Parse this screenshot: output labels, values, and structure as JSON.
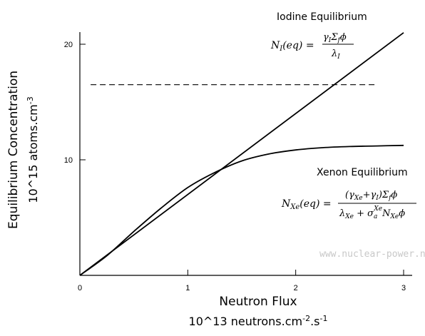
{
  "chart_data": {
    "type": "line",
    "xlabel": "Neutron Flux",
    "xlabel_units": "10^13 neutrons.cm",
    "xlabel_units_exp1": "-2",
    "xlabel_units_mid": ".s",
    "xlabel_units_exp2": "-1",
    "ylabel": "Equilibrium Concentration",
    "ylabel_units": "10^15 atoms.cm",
    "ylabel_units_exp": "-3",
    "xlim": [
      0,
      3
    ],
    "ylim": [
      0,
      22
    ],
    "x_ticks": [
      0,
      1,
      2,
      3
    ],
    "y_ticks": [
      10,
      20
    ],
    "x_tick_labels": [
      "0",
      "1",
      "2",
      "3"
    ],
    "y_tick_labels": [
      "10",
      "20"
    ],
    "grid": false,
    "series": [
      {
        "name": "Iodine Equilibrium",
        "style": "solid",
        "x": [
          0,
          3
        ],
        "y": [
          0,
          21.0
        ]
      },
      {
        "name": "Xenon Equilibrium",
        "style": "solid",
        "x": [
          0,
          0.25,
          0.5,
          0.75,
          1.0,
          1.25,
          1.5,
          1.75,
          2.0,
          2.25,
          2.5,
          2.75,
          3.0
        ],
        "y": [
          0,
          1.7,
          3.8,
          5.8,
          7.6,
          8.9,
          9.9,
          10.5,
          10.85,
          11.05,
          11.15,
          11.2,
          11.25
        ]
      }
    ],
    "reference_lines": [
      {
        "name": "",
        "style": "dashed",
        "x": [
          0.1,
          2.75
        ],
        "y": [
          16.5,
          16.5
        ]
      }
    ],
    "annotations": {
      "iodine_title": "Iodine Equilibrium",
      "xenon_title": "Xenon Equilibrium",
      "iodine_formula_lhs": "N",
      "iodine_formula_lhs_sub": "I",
      "iodine_formula_lhs_arg": "(eq) =",
      "iodine_formula_num": "γ",
      "iodine_formula_num_sub": "I",
      "iodine_formula_num_rest": "Σ",
      "iodine_formula_num_sub2": "f",
      "iodine_formula_num_end": "ϕ",
      "iodine_formula_den": "λ",
      "iodine_formula_den_sub": "I",
      "xenon_formula_lhs": "N",
      "xenon_formula_lhs_sub": "Xe",
      "xenon_formula_lhs_arg": "(eq) =",
      "xenon_formula_num": "(γ",
      "xenon_formula_num_sub1": "Xe",
      "xenon_formula_num_mid": "+γ",
      "xenon_formula_num_sub2": "I",
      "xenon_formula_num_mid2": ")Σ",
      "xenon_formula_num_sub3": "f",
      "xenon_formula_num_end": "ϕ",
      "xenon_formula_den1": "λ",
      "xenon_formula_den1_sub": "Xe",
      "xenon_formula_den_plus": " + σ",
      "xenon_formula_den_sub_a": "a",
      "xenon_formula_den_sup_xe": "Xe",
      "xenon_formula_den_N": "N",
      "xenon_formula_den_N_sub": "Xe",
      "xenon_formula_den_end": "ϕ"
    },
    "watermark": "www.nuclear-power.net",
    "colors": {
      "line": "#000000",
      "watermark": "#c8c8c8"
    }
  }
}
